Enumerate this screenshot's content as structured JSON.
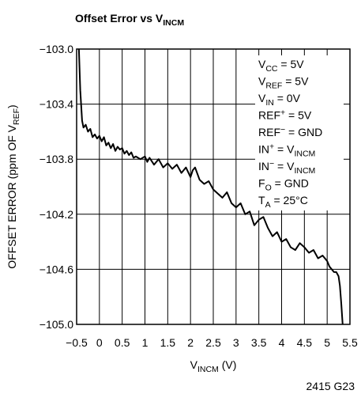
{
  "chart_data": {
    "type": "line",
    "title": [
      {
        "text": "Offset Error vs V"
      },
      {
        "text": "INCM",
        "style": "sub"
      }
    ],
    "xlabel": [
      {
        "text": "V"
      },
      {
        "text": "INCM",
        "style": "sub"
      },
      {
        "text": " (V)"
      }
    ],
    "ylabel": [
      {
        "text": "OFFSET ERROR (ppm OF V"
      },
      {
        "text": "REF",
        "style": "sub"
      },
      {
        "text": ")"
      }
    ],
    "annotations": [
      [
        {
          "text": "V"
        },
        {
          "text": "CC",
          "style": "sub"
        },
        {
          "text": " = 5V"
        }
      ],
      [
        {
          "text": "V"
        },
        {
          "text": "REF",
          "style": "sub"
        },
        {
          "text": " = 5V"
        }
      ],
      [
        {
          "text": "V"
        },
        {
          "text": "IN",
          "style": "sub"
        },
        {
          "text": " = 0V"
        }
      ],
      [
        {
          "text": "REF"
        },
        {
          "text": "+",
          "style": "sup"
        },
        {
          "text": " = 5V"
        }
      ],
      [
        {
          "text": "REF"
        },
        {
          "text": "−",
          "style": "sup"
        },
        {
          "text": " = GND"
        }
      ],
      [
        {
          "text": "IN"
        },
        {
          "text": "+",
          "style": "sup"
        },
        {
          "text": " = V"
        },
        {
          "text": "INCM",
          "style": "sub"
        }
      ],
      [
        {
          "text": "IN"
        },
        {
          "text": "−",
          "style": "sup"
        },
        {
          "text": " = V"
        },
        {
          "text": "INCM",
          "style": "sub"
        }
      ],
      [
        {
          "text": "F"
        },
        {
          "text": "O",
          "style": "sub"
        },
        {
          "text": " = GND"
        }
      ],
      [
        {
          "text": "T"
        },
        {
          "text": "A",
          "style": "sub"
        },
        {
          "text": " = 25°C"
        }
      ]
    ],
    "footnote": "2415 G23",
    "color": "#000000",
    "x": [
      -0.45,
      -0.42,
      -0.38,
      -0.35,
      -0.3,
      -0.25,
      -0.2,
      -0.15,
      -0.1,
      -0.05,
      0,
      0.05,
      0.1,
      0.15,
      0.2,
      0.25,
      0.3,
      0.35,
      0.4,
      0.45,
      0.5,
      0.55,
      0.6,
      0.65,
      0.7,
      0.75,
      0.8,
      0.9,
      1.0,
      1.05,
      1.1,
      1.2,
      1.3,
      1.4,
      1.5,
      1.6,
      1.7,
      1.8,
      1.9,
      2.0,
      2.05,
      2.1,
      2.2,
      2.3,
      2.4,
      2.5,
      2.6,
      2.7,
      2.8,
      2.9,
      3.0,
      3.1,
      3.2,
      3.3,
      3.4,
      3.5,
      3.6,
      3.7,
      3.8,
      3.9,
      4.0,
      4.1,
      4.2,
      4.3,
      4.4,
      4.5,
      4.6,
      4.7,
      4.8,
      4.9,
      5.0,
      5.05,
      5.1,
      5.15,
      5.2,
      5.25,
      5.28,
      5.31,
      5.34
    ],
    "values": [
      -103.0,
      -103.3,
      -103.52,
      -103.57,
      -103.55,
      -103.6,
      -103.58,
      -103.64,
      -103.62,
      -103.65,
      -103.63,
      -103.67,
      -103.64,
      -103.7,
      -103.68,
      -103.72,
      -103.69,
      -103.74,
      -103.71,
      -103.73,
      -103.72,
      -103.76,
      -103.74,
      -103.77,
      -103.75,
      -103.79,
      -103.78,
      -103.8,
      -103.78,
      -103.82,
      -103.79,
      -103.84,
      -103.8,
      -103.86,
      -103.83,
      -103.87,
      -103.84,
      -103.9,
      -103.86,
      -103.93,
      -103.88,
      -103.86,
      -103.95,
      -103.98,
      -103.96,
      -104.02,
      -104.05,
      -104.08,
      -104.04,
      -104.12,
      -104.15,
      -104.12,
      -104.2,
      -104.18,
      -104.28,
      -104.24,
      -104.22,
      -104.3,
      -104.36,
      -104.33,
      -104.4,
      -104.38,
      -104.44,
      -104.46,
      -104.41,
      -104.44,
      -104.48,
      -104.46,
      -104.52,
      -104.5,
      -104.54,
      -104.58,
      -104.6,
      -104.62,
      -104.62,
      -104.65,
      -104.72,
      -104.85,
      -105.0
    ],
    "xlim": [
      -0.5,
      5.5
    ],
    "ylim": [
      -105.0,
      -103.0
    ],
    "xticks": [
      {
        "value": -0.5,
        "label": "−0.5"
      },
      0,
      0.5,
      1,
      1.5,
      2,
      2.5,
      3,
      3.5,
      4,
      4.5,
      5,
      5.5
    ],
    "yticks": [
      {
        "value": -105.0,
        "label": "−105.0"
      },
      {
        "value": -104.6,
        "label": "−104.6"
      },
      {
        "value": -104.2,
        "label": "−104.2"
      },
      {
        "value": -103.8,
        "label": "−103.8"
      },
      {
        "value": -103.4,
        "label": "−103.4"
      },
      {
        "value": -103.0,
        "label": "−103.0"
      }
    ],
    "grid": true
  }
}
